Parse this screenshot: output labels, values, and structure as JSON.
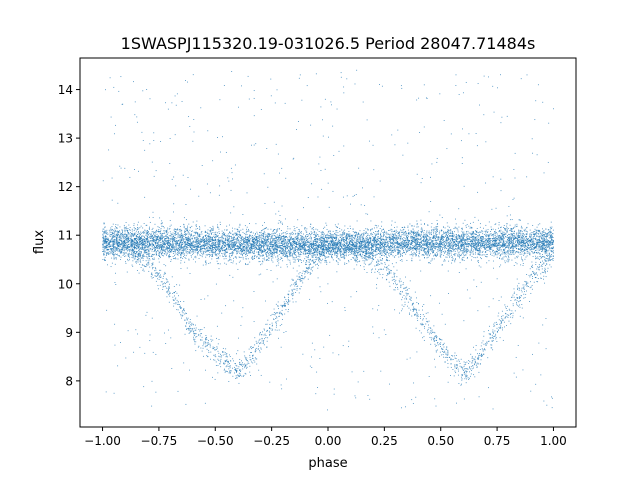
{
  "chart_data": {
    "type": "scatter",
    "title": "1SWASPJ115320.19-031026.5 Period 28047.71484s",
    "xlabel": "phase",
    "ylabel": "flux",
    "xlim": [
      -1.1,
      1.1
    ],
    "ylim": [
      7.05,
      14.65
    ],
    "xticks": [
      -1.0,
      -0.75,
      -0.5,
      -0.25,
      0.0,
      0.25,
      0.5,
      0.75,
      1.0
    ],
    "xtick_labels": [
      "−1.00",
      "−0.75",
      "−0.50",
      "−0.25",
      "0.00",
      "0.25",
      "0.50",
      "0.75",
      "1.00"
    ],
    "yticks": [
      8,
      9,
      10,
      11,
      12,
      13,
      14
    ],
    "ytick_labels": [
      "8",
      "9",
      "10",
      "11",
      "12",
      "13",
      "14"
    ],
    "grid": false,
    "marker_color": "#1f77b4",
    "series": [
      {
        "x": [
          -1.0,
          -0.9,
          -0.8,
          -0.7,
          -0.6,
          -0.5,
          -0.45,
          -0.4,
          -0.35,
          -0.3,
          -0.2,
          -0.1,
          0.0,
          0.1,
          0.2,
          0.3,
          0.4,
          0.5,
          0.55,
          0.6,
          0.65,
          0.7,
          0.8,
          0.9,
          1.0
        ],
        "y_baseline": [
          10.85,
          10.85,
          10.85,
          10.85,
          10.85,
          10.8,
          10.8,
          10.8,
          10.8,
          10.8,
          10.8,
          10.8,
          10.8,
          10.8,
          10.8,
          10.85,
          10.85,
          10.85,
          10.85,
          10.85,
          10.85,
          10.85,
          10.85,
          10.85,
          10.85
        ],
        "y_eclipse": [
          10.8,
          10.75,
          10.45,
          9.9,
          9.0,
          8.6,
          8.35,
          8.2,
          8.4,
          8.8,
          9.5,
          10.3,
          10.8,
          10.8,
          10.55,
          10.1,
          9.4,
          8.7,
          8.4,
          8.2,
          8.35,
          8.7,
          9.4,
          10.1,
          10.6
        ]
      }
    ]
  }
}
